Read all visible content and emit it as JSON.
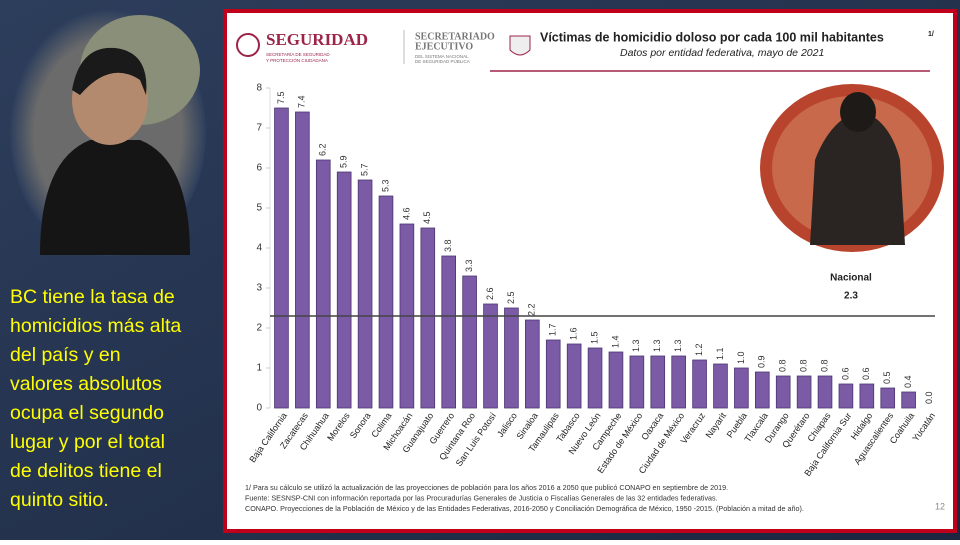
{
  "slide": {
    "caption_lines": [
      "BC tiene la tasa de",
      "homicidios más alta",
      "del país y en",
      "valores absolutos",
      "ocupa el segundo",
      "lugar y por el total",
      "de delitos tiene el",
      "quinto sitio."
    ],
    "page_number": "12"
  },
  "header": {
    "logo_title": "SEGURIDAD",
    "logo_subtitle_1": "SECRETARÍA DE SEGURIDAD",
    "logo_subtitle_2": "Y PROTECCIÓN CIUDADANA",
    "agency_1": "SECRETARIADO",
    "agency_2": "EJECUTIVO",
    "agency_3": "DEL SISTEMA NACIONAL",
    "agency_4": "DE SEGURIDAD PÚBLICA"
  },
  "footnotes": [
    "1/ Para su cálculo se utilizó la actualización de las proyecciones de población para los años 2016 a 2050 que publicó CONAPO en septiembre de 2019.",
    "Fuente: SESNSP-CNI con información reportada por las Procuradurías Generales de Justicia o Fiscalías Generales de las 32 entidades federativas.",
    "CONAPO. Proyecciones de la Población de México y de las Entidades Federativas, 2016-2050 y Conciliación Demográfica de México, 1950 -2015. (Población a mitad de año)."
  ],
  "chart_data": {
    "type": "bar",
    "title": "Víctimas de homicidio doloso por cada 100 mil habitantes",
    "title_note": "1/",
    "subtitle": "Datos por entidad federativa, mayo de 2021",
    "categories": [
      "Baja California",
      "Zacatecas",
      "Chihuahua",
      "Morelos",
      "Sonora",
      "Colima",
      "Michoacán",
      "Guanajuato",
      "Guerrero",
      "Quintana Roo",
      "San Luis Potosí",
      "Jalisco",
      "Sinaloa",
      "Tamaulipas",
      "Tabasco",
      "Nuevo León",
      "Campeche",
      "Estado de México",
      "Oaxaca",
      "Ciudad de México",
      "Veracruz",
      "Nayarit",
      "Puebla",
      "Tlaxcala",
      "Durango",
      "Querétaro",
      "Chiapas",
      "Baja California Sur",
      "Hidalgo",
      "Aguascalientes",
      "Coahuila",
      "Yucatán"
    ],
    "values": [
      7.5,
      7.4,
      6.2,
      5.9,
      5.7,
      5.3,
      4.6,
      4.5,
      3.8,
      3.3,
      2.6,
      2.5,
      2.2,
      1.7,
      1.6,
      1.5,
      1.4,
      1.3,
      1.3,
      1.3,
      1.2,
      1.1,
      1.0,
      0.9,
      0.8,
      0.8,
      0.8,
      0.6,
      0.6,
      0.5,
      0.4,
      0.0
    ],
    "value_labels": [
      "7.5",
      "7.4",
      "6.2",
      "5.9",
      "5.7",
      "5.3",
      "4.6",
      "4.5",
      "3.8",
      "3.3",
      "2.6",
      "2.5",
      "2.2",
      "1.7",
      "1.6",
      "1.5",
      "1.4",
      "1.3",
      "1.3",
      "1.3",
      "1.2",
      "1.1",
      "1.0",
      "0.9",
      "0.8",
      "0.8",
      "0.8",
      "0.6",
      "0.6",
      "0.5",
      "0.4",
      "0.0"
    ],
    "color": "#7c5ba6",
    "ylim": [
      0,
      8
    ],
    "yticks": [
      0,
      1,
      2,
      3,
      4,
      5,
      6,
      7,
      8
    ],
    "reference": {
      "label": "Nacional",
      "value": 2.3
    }
  }
}
